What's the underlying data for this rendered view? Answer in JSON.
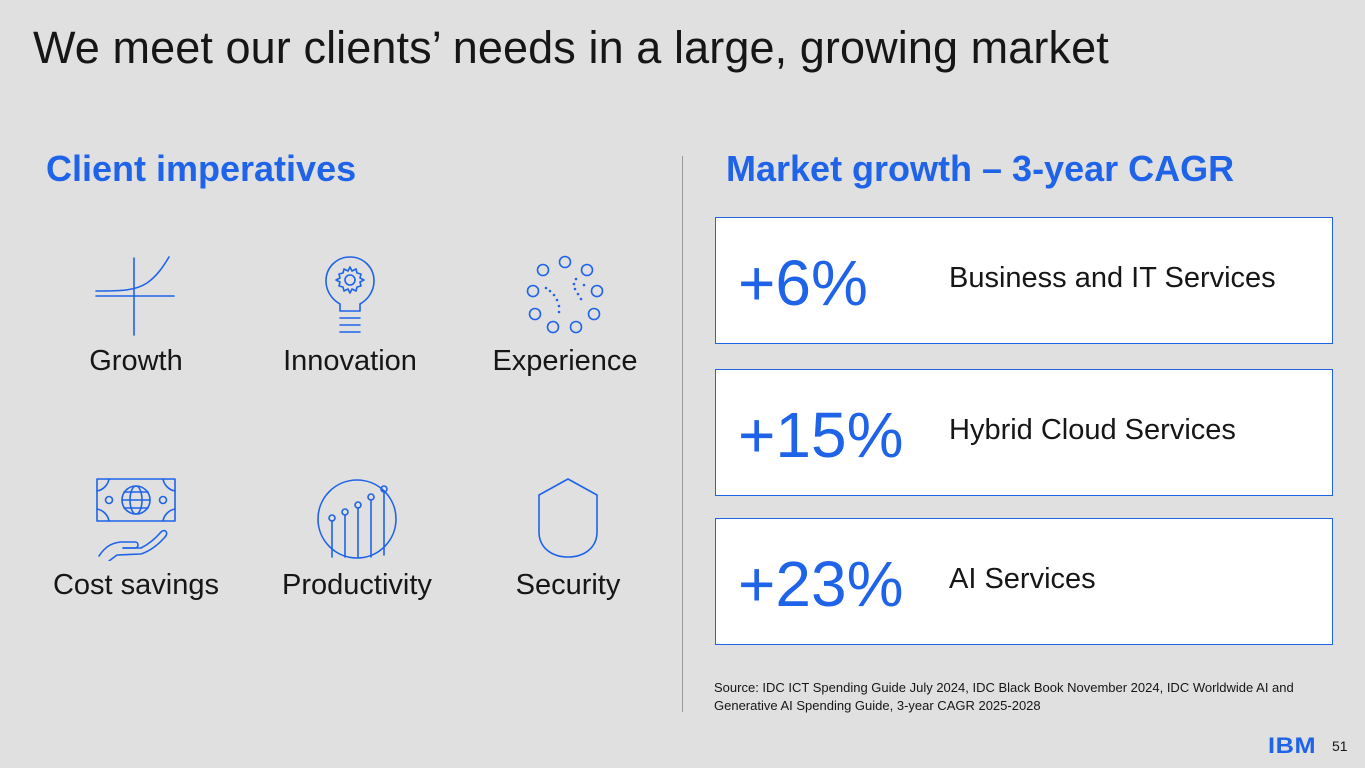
{
  "title": "We meet our clients’ needs in a large, growing market",
  "left": {
    "heading": "Client imperatives",
    "items": [
      {
        "label": "Growth",
        "icon": "growth-curve-icon"
      },
      {
        "label": "Innovation",
        "icon": "lightbulb-gear-icon"
      },
      {
        "label": "Experience",
        "icon": "circle-dots-icon"
      },
      {
        "label": "Cost savings",
        "icon": "money-hand-icon"
      },
      {
        "label": "Productivity",
        "icon": "rising-chart-icon"
      },
      {
        "label": "Security",
        "icon": "shield-icon"
      }
    ]
  },
  "right": {
    "heading": "Market growth – 3-year CAGR",
    "boxes": [
      {
        "value": "+6%",
        "label": "Business and IT Services"
      },
      {
        "value": "+15%",
        "label": "Hybrid Cloud Services"
      },
      {
        "value": "+23%",
        "label": "AI Services"
      }
    ],
    "source": "Source: IDC ICT Spending Guide July 2024, IDC Black Book November 2024, IDC Worldwide AI and Generative AI Spending Guide, 3-year CAGR 2025-2028"
  },
  "footer": {
    "logo_text": "IBM",
    "page_number": "51"
  },
  "colors": {
    "accent": "#1f63e8",
    "background": "#e0e0e0",
    "text": "#161616"
  }
}
